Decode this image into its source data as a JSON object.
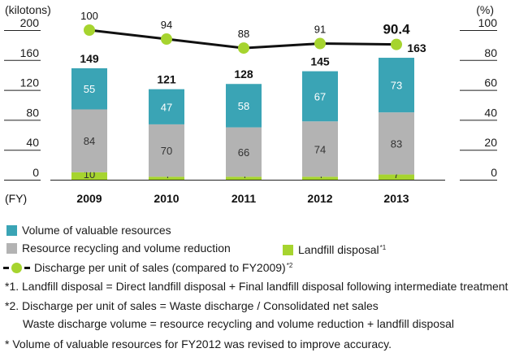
{
  "chart_data": {
    "type": "bar",
    "stacked": true,
    "x_prefix": "(FY)",
    "categories": [
      "2009",
      "2010",
      "2011",
      "2012",
      "2013"
    ],
    "y_left": {
      "label": "(kilotons)",
      "ticks": [
        "0",
        "40",
        "80",
        "120",
        "160",
        "200"
      ],
      "range": [
        0,
        200
      ]
    },
    "y_right": {
      "label": "(%)",
      "ticks": [
        "0",
        "20",
        "40",
        "60",
        "80",
        "100"
      ],
      "range": [
        0,
        100
      ]
    },
    "series": [
      {
        "name": "Landfill disposal",
        "color": "#a6d42f",
        "values": [
          10,
          4,
          4,
          4,
          7
        ]
      },
      {
        "name": "Resource recycling and volume reduction",
        "color": "#b3b3b3",
        "values": [
          84,
          70,
          66,
          74,
          83
        ]
      },
      {
        "name": "Volume of valuable resources",
        "color": "#3aa4b5",
        "values": [
          55,
          47,
          58,
          67,
          73
        ]
      }
    ],
    "totals": [
      149,
      121,
      128,
      145,
      163
    ],
    "line_series": {
      "name": "Discharge per unit of sales (compared to FY2009)",
      "axis": "right",
      "color": "#a6d42f",
      "values": [
        100,
        94,
        88,
        91,
        90.4
      ],
      "labels": [
        "100",
        "94",
        "88",
        "91",
        "90.4"
      ]
    },
    "grid": false
  },
  "legend": {
    "valuable": "Volume of valuable resources",
    "recycling": "Resource recycling and volume reduction",
    "landfill": "Landfill disposal",
    "landfill_mark": "*1",
    "discharge": "Discharge per unit of sales (compared to FY2009)",
    "discharge_mark": "*2"
  },
  "notes": [
    "*1. Landfill disposal = Direct landfill disposal + Final landfill disposal following intermediate treatment",
    "*2. Discharge per unit of sales = Waste discharge / Consolidated net sales",
    "Waste discharge volume = resource recycling and volume reduction + landfill disposal",
    "* Volume of valuable resources for FY2012 was revised to improve accuracy."
  ]
}
